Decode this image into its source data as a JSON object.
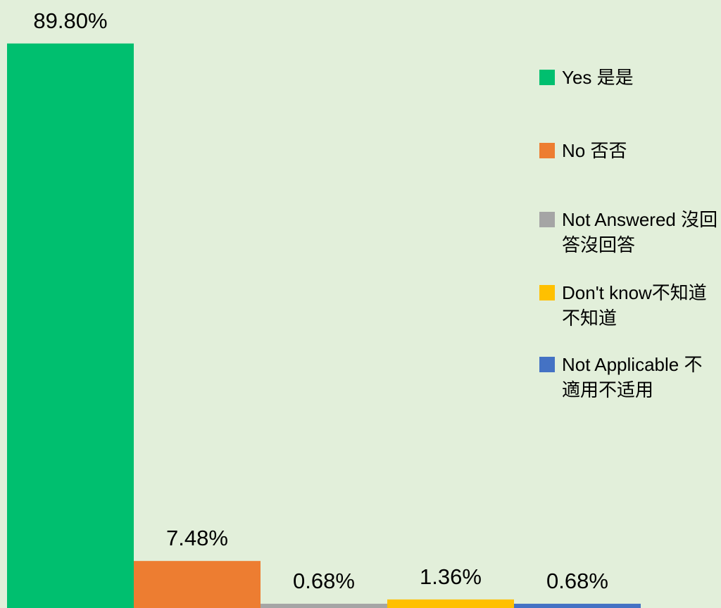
{
  "chart_data": {
    "type": "bar",
    "categories": [
      null
    ],
    "ylim": [
      0,
      90
    ],
    "series": [
      {
        "name": "Yes 是是",
        "color": "#00bf6f",
        "values": [
          89.8
        ],
        "value_labels": [
          "89.80%"
        ]
      },
      {
        "name": "No 否否",
        "color": "#ed7d31",
        "values": [
          7.48
        ],
        "value_labels": [
          "7.48%"
        ]
      },
      {
        "name": "Not Answered 沒回答沒回答",
        "color": "#a5a5a5",
        "values": [
          0.68
        ],
        "value_labels": [
          "0.68%"
        ]
      },
      {
        "name": "Don't know不知道不知道",
        "color": "#ffc000",
        "values": [
          1.36
        ],
        "value_labels": [
          "1.36%"
        ]
      },
      {
        "name": "Not Applicable 不適用不适用",
        "color": "#4472c4",
        "values": [
          0.68
        ],
        "value_labels": [
          "0.68%"
        ]
      }
    ],
    "legend": "right"
  }
}
